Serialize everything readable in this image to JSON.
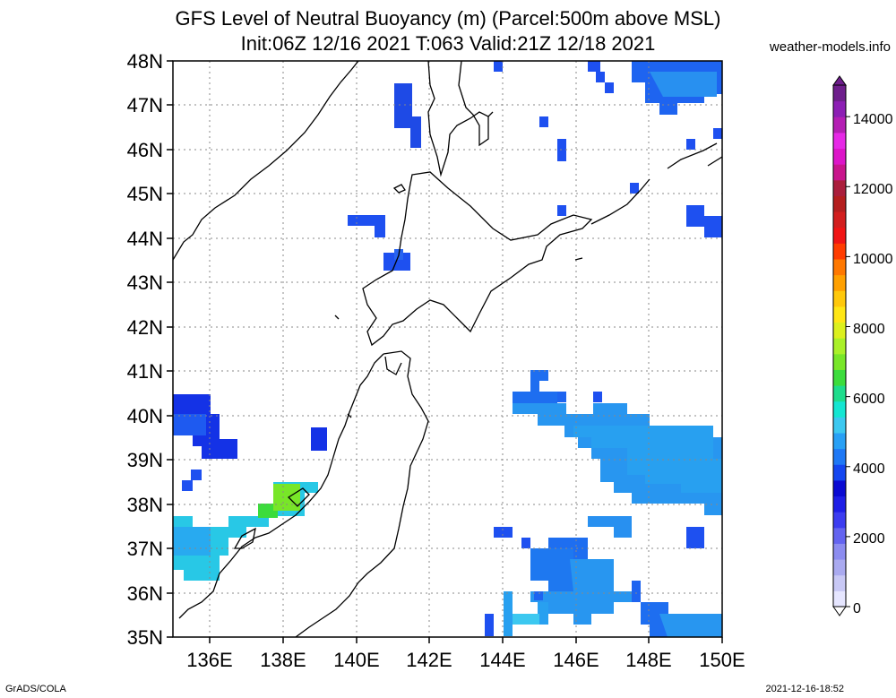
{
  "title_line1": "GFS Level of Neutral Buoyancy (m) (Parcel:500m above MSL)",
  "title_line2": "Init:06Z 12/16 2021 T:063 Valid:21Z 12/18 2021",
  "credit": "weather-models.info",
  "footer_left": "GrADS/COLA",
  "footer_right": "2021-12-16-18:52",
  "map": {
    "lon_range": [
      135,
      150
    ],
    "lat_range": [
      35,
      48
    ],
    "lat_labels": [
      "35N",
      "36N",
      "37N",
      "38N",
      "39N",
      "40N",
      "41N",
      "42N",
      "43N",
      "44N",
      "45N",
      "46N",
      "47N",
      "48N"
    ],
    "lon_labels": [
      "136E",
      "138E",
      "140E",
      "142E",
      "144E",
      "146E",
      "148E",
      "150E"
    ],
    "grid": "dotted"
  },
  "colorbar": {
    "labels": [
      "0",
      "2000",
      "4000",
      "6000",
      "8000",
      "10000",
      "12000",
      "14000"
    ],
    "colors": [
      "#e6e6ff",
      "#c8c8f5",
      "#aaaaf0",
      "#8c8cf0",
      "#6464f0",
      "#3c3cf0",
      "#1e1ee6",
      "#0a0ad2",
      "#1446f0",
      "#1e78f5",
      "#28a0f5",
      "#3cc8f0",
      "#14e6d2",
      "#1edc8c",
      "#3cdc3c",
      "#78e628",
      "#aaf028",
      "#dcf01e",
      "#ffe614",
      "#ffc80a",
      "#ffa000",
      "#ff7800",
      "#ff3c00",
      "#f01414",
      "#d21e1e",
      "#b41e1e",
      "#aa1e3c",
      "#c8148c",
      "#dc14c8",
      "#e628e6",
      "#b41eb4",
      "#8c1eb4",
      "#6e1e8c"
    ]
  },
  "regions": [
    {
      "name": "japan-sea-west",
      "color": "#1e50f0"
    },
    {
      "name": "noto-green",
      "color": "#3cdc64"
    },
    {
      "name": "pacific-east",
      "color": "#2896f0"
    }
  ]
}
